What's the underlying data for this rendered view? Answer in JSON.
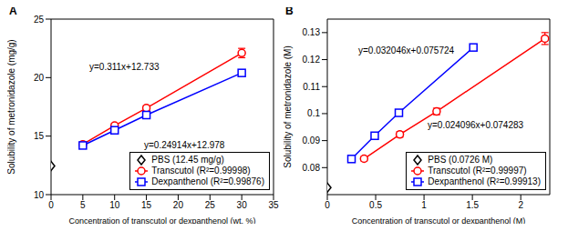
{
  "chart_data": [
    {
      "type": "scatter",
      "title": "A",
      "x_label": "Concentration of transcutol or dexpanthenol (wt. %)",
      "y_label": "Solubility of metronidazole (mg/g)",
      "xlim": [
        0,
        35
      ],
      "ylim": [
        10,
        25
      ],
      "xticks": [
        0,
        5,
        10,
        15,
        20,
        25,
        30,
        35
      ],
      "yticks": [
        10,
        15,
        20,
        25
      ],
      "grid": false,
      "legend": "lower right",
      "annotations": [
        "y=0.311x+12.733",
        "y=0.24914x+12.978"
      ],
      "series": [
        {
          "name": "PBS (12.45 mg/g)",
          "color": "#000000",
          "marker": "diamond",
          "type": "scatter",
          "x": [
            0
          ],
          "values": [
            12.45
          ]
        },
        {
          "name": "Transcutol (R²=0.99998)",
          "color": "#ff0000",
          "marker": "circle",
          "type": "line",
          "line_style": "solid",
          "x": [
            5,
            10,
            15,
            30
          ],
          "values": [
            14.3,
            15.9,
            17.4,
            22.1
          ],
          "errors": [
            0.15,
            0.2,
            0.2,
            0.4
          ]
        },
        {
          "name": "Dexpanthenol (R²=0.99876)",
          "color": "#0000ff",
          "marker": "square",
          "type": "line",
          "line_style": "solid",
          "x": [
            5,
            10,
            15,
            30
          ],
          "values": [
            14.2,
            15.5,
            16.8,
            20.4
          ],
          "errors": [
            0.1,
            0.1,
            0.1,
            0.1
          ]
        }
      ]
    },
    {
      "type": "scatter",
      "title": "B",
      "x_label": "Concentration of transcutol or dexpanthenol (M)",
      "y_label": "Solubility of metronidazole (M)",
      "xlim": [
        0,
        2.3
      ],
      "ylim": [
        0.07,
        0.135
      ],
      "xticks": [
        0,
        0.5,
        1,
        1.5,
        2
      ],
      "yticks": [
        0.08,
        0.09,
        0.1,
        0.11,
        0.12,
        0.13
      ],
      "grid": false,
      "legend": "lower right",
      "annotations": [
        "y=0.032046x+0.075724",
        "y=0.024096x+0.074283"
      ],
      "series": [
        {
          "name": "PBS (0.0726 M)",
          "color": "#000000",
          "marker": "diamond",
          "type": "scatter",
          "x": [
            0
          ],
          "values": [
            0.0726
          ]
        },
        {
          "name": "Transcutol (R²=0.99997)",
          "color": "#ff0000",
          "marker": "circle",
          "type": "line",
          "line_style": "solid",
          "x": [
            0.38,
            0.75,
            1.13,
            2.25
          ],
          "values": [
            0.0833,
            0.0923,
            0.1008,
            0.1278
          ],
          "errors": [
            0.0008,
            0.001,
            0.0012,
            0.0022
          ]
        },
        {
          "name": "Dexpanthenol (R²=0.99913)",
          "color": "#0000ff",
          "marker": "square",
          "type": "line",
          "line_style": "solid",
          "x": [
            0.25,
            0.49,
            0.74,
            1.51
          ],
          "values": [
            0.0832,
            0.0918,
            0.1003,
            0.1245
          ],
          "errors": [
            0.0005,
            0.0005,
            0.0008,
            0.0008
          ]
        }
      ]
    }
  ]
}
